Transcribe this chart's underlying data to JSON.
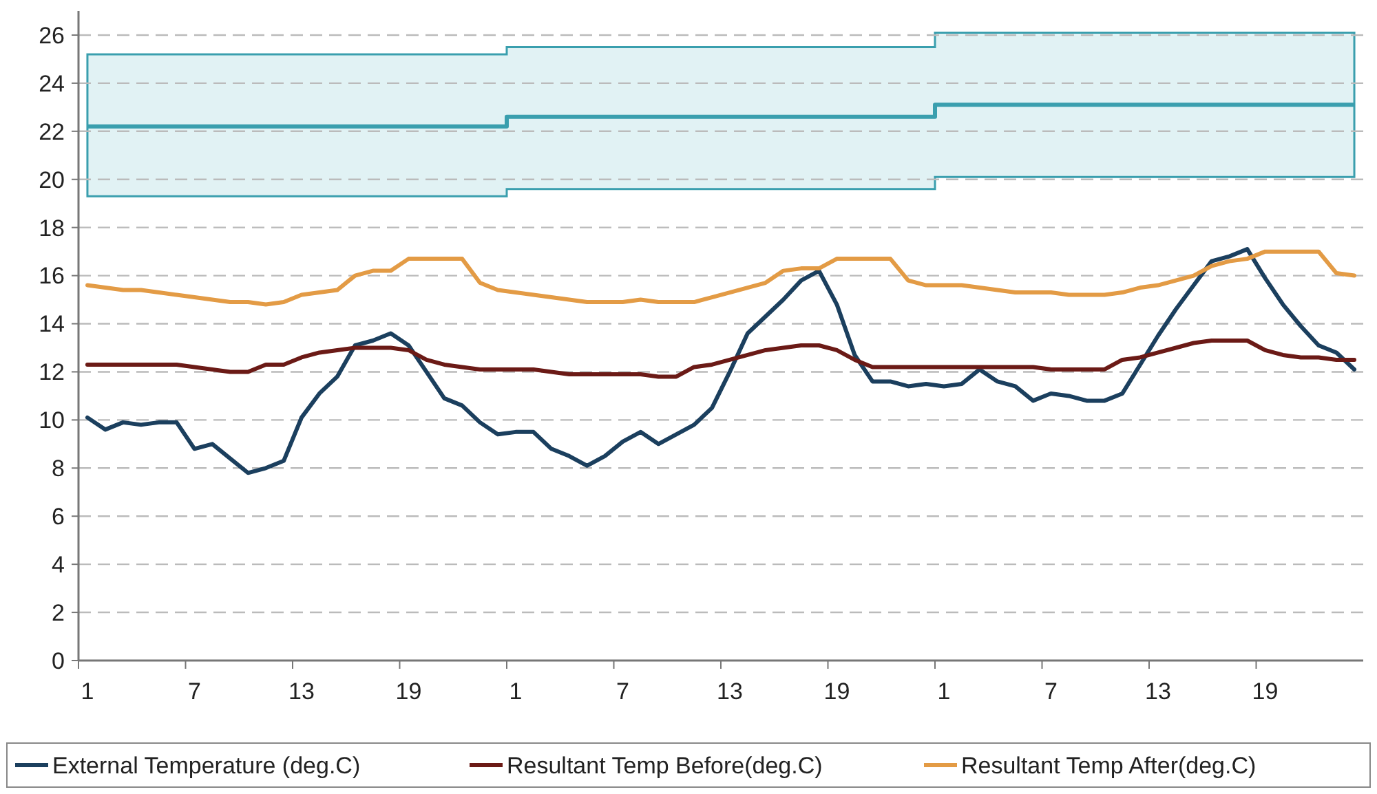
{
  "chart_data": {
    "type": "line",
    "categories": [
      "1",
      null,
      null,
      null,
      null,
      null,
      "7",
      null,
      null,
      null,
      null,
      null,
      "13",
      null,
      null,
      null,
      null,
      null,
      "19",
      null,
      null,
      null,
      null,
      null,
      "1",
      null,
      null,
      null,
      null,
      null,
      "7",
      null,
      null,
      null,
      null,
      null,
      "13",
      null,
      null,
      null,
      null,
      null,
      "19",
      null,
      null,
      null,
      null,
      null,
      "1",
      null,
      null,
      null,
      null,
      null,
      "7",
      null,
      null,
      null,
      null,
      null,
      "13",
      null,
      null,
      null,
      null,
      null,
      "19",
      null,
      null,
      null,
      null,
      null
    ],
    "ylim": [
      0,
      27
    ],
    "yticks": [
      0,
      2,
      4,
      6,
      8,
      10,
      12,
      14,
      16,
      18,
      20,
      22,
      24,
      26
    ],
    "grid": "y",
    "legend": "bottom",
    "series": [
      {
        "type": "step",
        "color": "#3a9fae",
        "values": [
          22.2,
          22.2,
          22.2,
          22.2,
          22.2,
          22.2,
          22.2,
          22.2,
          22.2,
          22.2,
          22.2,
          22.2,
          22.2,
          22.2,
          22.2,
          22.2,
          22.2,
          22.2,
          22.2,
          22.2,
          22.2,
          22.2,
          22.2,
          22.2,
          22.6,
          22.6,
          22.6,
          22.6,
          22.6,
          22.6,
          22.6,
          22.6,
          22.6,
          22.6,
          22.6,
          22.6,
          22.6,
          22.6,
          22.6,
          22.6,
          22.6,
          22.6,
          22.6,
          22.6,
          22.6,
          22.6,
          22.6,
          22.6,
          23.1,
          23.1,
          23.1,
          23.1,
          23.1,
          23.1,
          23.1,
          23.1,
          23.1,
          23.1,
          23.1,
          23.1,
          23.1,
          23.1,
          23.1,
          23.1,
          23.1,
          23.1,
          23.1,
          23.1,
          23.1,
          23.1,
          23.1,
          23.1
        ],
        "lower": [
          19.3,
          19.3,
          19.3,
          19.3,
          19.3,
          19.3,
          19.3,
          19.3,
          19.3,
          19.3,
          19.3,
          19.3,
          19.3,
          19.3,
          19.3,
          19.3,
          19.3,
          19.3,
          19.3,
          19.3,
          19.3,
          19.3,
          19.3,
          19.3,
          19.6,
          19.6,
          19.6,
          19.6,
          19.6,
          19.6,
          19.6,
          19.6,
          19.6,
          19.6,
          19.6,
          19.6,
          19.6,
          19.6,
          19.6,
          19.6,
          19.6,
          19.6,
          19.6,
          19.6,
          19.6,
          19.6,
          19.6,
          19.6,
          20.1,
          20.1,
          20.1,
          20.1,
          20.1,
          20.1,
          20.1,
          20.1,
          20.1,
          20.1,
          20.1,
          20.1,
          20.1,
          20.1,
          20.1,
          20.1,
          20.1,
          20.1,
          20.1,
          20.1,
          20.1,
          20.1,
          20.1,
          20.1
        ],
        "upper": [
          25.2,
          25.2,
          25.2,
          25.2,
          25.2,
          25.2,
          25.2,
          25.2,
          25.2,
          25.2,
          25.2,
          25.2,
          25.2,
          25.2,
          25.2,
          25.2,
          25.2,
          25.2,
          25.2,
          25.2,
          25.2,
          25.2,
          25.2,
          25.2,
          25.5,
          25.5,
          25.5,
          25.5,
          25.5,
          25.5,
          25.5,
          25.5,
          25.5,
          25.5,
          25.5,
          25.5,
          25.5,
          25.5,
          25.5,
          25.5,
          25.5,
          25.5,
          25.5,
          25.5,
          25.5,
          25.5,
          25.5,
          25.5,
          26.1,
          26.1,
          26.1,
          26.1,
          26.1,
          26.1,
          26.1,
          26.1,
          26.1,
          26.1,
          26.1,
          26.1,
          26.1,
          26.1,
          26.1,
          26.1,
          26.1,
          26.1,
          26.1,
          26.1,
          26.1,
          26.1,
          26.1,
          26.1
        ]
      },
      {
        "name": "External Temperature (deg.C)",
        "color": "#1b3f5e",
        "values": [
          10.1,
          9.6,
          9.9,
          9.8,
          9.9,
          9.9,
          8.8,
          9.0,
          8.4,
          7.8,
          8.0,
          8.3,
          10.1,
          11.1,
          11.8,
          13.1,
          13.3,
          13.6,
          13.1,
          12.0,
          10.9,
          10.6,
          9.9,
          9.4,
          9.5,
          9.5,
          8.8,
          8.5,
          8.1,
          8.5,
          9.1,
          9.5,
          9.0,
          9.4,
          9.8,
          10.5,
          12.0,
          13.6,
          14.3,
          15.0,
          15.8,
          16.2,
          14.8,
          12.7,
          11.6,
          11.6,
          11.4,
          11.5,
          11.4,
          11.5,
          12.1,
          11.6,
          11.4,
          10.8,
          11.1,
          11.0,
          10.8,
          10.8,
          11.1,
          12.3,
          13.5,
          14.6,
          15.6,
          16.6,
          16.8,
          17.1,
          15.9,
          14.8,
          13.9,
          13.1,
          12.8,
          12.1
        ]
      },
      {
        "name": "Resultant Temp Before(deg.C)",
        "color": "#6b1a16",
        "values": [
          12.3,
          12.3,
          12.3,
          12.3,
          12.3,
          12.3,
          12.2,
          12.1,
          12.0,
          12.0,
          12.3,
          12.3,
          12.6,
          12.8,
          12.9,
          13.0,
          13.0,
          13.0,
          12.9,
          12.5,
          12.3,
          12.2,
          12.1,
          12.1,
          12.1,
          12.1,
          12.0,
          11.9,
          11.9,
          11.9,
          11.9,
          11.9,
          11.8,
          11.8,
          12.2,
          12.3,
          12.5,
          12.7,
          12.9,
          13.0,
          13.1,
          13.1,
          12.9,
          12.5,
          12.2,
          12.2,
          12.2,
          12.2,
          12.2,
          12.2,
          12.2,
          12.2,
          12.2,
          12.2,
          12.1,
          12.1,
          12.1,
          12.1,
          12.5,
          12.6,
          12.8,
          13.0,
          13.2,
          13.3,
          13.3,
          13.3,
          12.9,
          12.7,
          12.6,
          12.6,
          12.5,
          12.5
        ]
      },
      {
        "name": "Resultant Temp After(deg.C)",
        "color": "#e39b45",
        "values": [
          15.6,
          15.5,
          15.4,
          15.4,
          15.3,
          15.2,
          15.1,
          15.0,
          14.9,
          14.9,
          14.8,
          14.9,
          15.2,
          15.3,
          15.4,
          16.0,
          16.2,
          16.2,
          16.7,
          16.7,
          16.7,
          16.7,
          15.7,
          15.4,
          15.3,
          15.2,
          15.1,
          15.0,
          14.9,
          14.9,
          14.9,
          15.0,
          14.9,
          14.9,
          14.9,
          15.1,
          15.3,
          15.5,
          15.7,
          16.2,
          16.3,
          16.3,
          16.7,
          16.7,
          16.7,
          16.7,
          15.8,
          15.6,
          15.6,
          15.6,
          15.5,
          15.4,
          15.3,
          15.3,
          15.3,
          15.2,
          15.2,
          15.2,
          15.3,
          15.5,
          15.6,
          15.8,
          16.0,
          16.4,
          16.6,
          16.7,
          17.0,
          17.0,
          17.0,
          17.0,
          16.1,
          16.0
        ]
      }
    ]
  }
}
